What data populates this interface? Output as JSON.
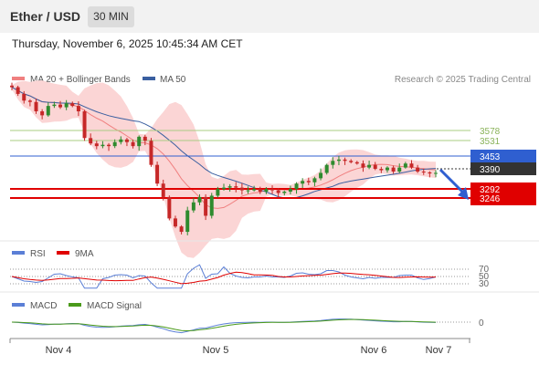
{
  "header": {
    "title": "Ether / USD",
    "interval": "30 MIN"
  },
  "datetime": "Thursday, November 6, 2025 10:45:34 AM CET",
  "legend": {
    "ma20": "MA 20 + Bollinger Bands",
    "ma50": "MA 50",
    "credit": "Research © 2025 Trading Central"
  },
  "rsi_legend": {
    "rsi": "RSI",
    "ma9": "9MA"
  },
  "macd_legend": {
    "macd": "MACD",
    "signal": "MACD Signal"
  },
  "colors": {
    "bull": "#2e8b2e",
    "bear": "#c62828",
    "ma20": "#f08080",
    "ma50": "#3a5fa0",
    "band": "#fbd5d5",
    "resistance": "#a9cc82",
    "pivot": "#2f5fd0",
    "support": "#e00000",
    "last": "#333333"
  },
  "chart_data": [
    {
      "type": "candlestick",
      "title": "Ether / USD",
      "x_ticks": [
        "Nov 4",
        "Nov 5",
        "Nov 6",
        "Nov 7"
      ],
      "levels": [
        {
          "label": "3578",
          "value": 3578,
          "kind": "resistance"
        },
        {
          "label": "3531",
          "value": 3531,
          "kind": "resistance"
        },
        {
          "label": "3453",
          "value": 3453,
          "kind": "pivot"
        },
        {
          "label": "3390",
          "value": 3390,
          "kind": "last"
        },
        {
          "label": "3292",
          "value": 3292,
          "kind": "support"
        },
        {
          "label": "3246",
          "value": 3246,
          "kind": "support"
        }
      ],
      "close_path": [
        3710,
        3685,
        3660,
        3655,
        3620,
        3605,
        3640,
        3645,
        3635,
        3650,
        3640,
        3620,
        3520,
        3500,
        3490,
        3495,
        3490,
        3505,
        3515,
        3505,
        3490,
        3525,
        3510,
        3420,
        3350,
        3300,
        3220,
        3190,
        3170,
        3250,
        3280,
        3300,
        3230,
        3305,
        3330,
        3335,
        3340,
        3335,
        3325,
        3325,
        3330,
        3320,
        3330,
        3325,
        3315,
        3320,
        3330,
        3350,
        3360,
        3355,
        3370,
        3390,
        3420,
        3435,
        3440,
        3435,
        3430,
        3425,
        3410,
        3420,
        3405,
        3400,
        3410,
        3395,
        3410,
        3425,
        3410,
        3395,
        3392,
        3388,
        3390
      ],
      "ylim": [
        3050,
        3760
      ],
      "trend_arrow": {
        "direction": "down",
        "target": 3292
      }
    },
    {
      "type": "line",
      "name": "RSI",
      "levels": [
        70,
        50,
        30
      ],
      "series": [
        {
          "name": "RSI"
        },
        {
          "name": "9MA"
        }
      ],
      "ylim": [
        15,
        85
      ]
    },
    {
      "type": "line",
      "name": "MACD",
      "levels": [
        0
      ],
      "series": [
        {
          "name": "MACD"
        },
        {
          "name": "MACD Signal"
        }
      ]
    }
  ]
}
